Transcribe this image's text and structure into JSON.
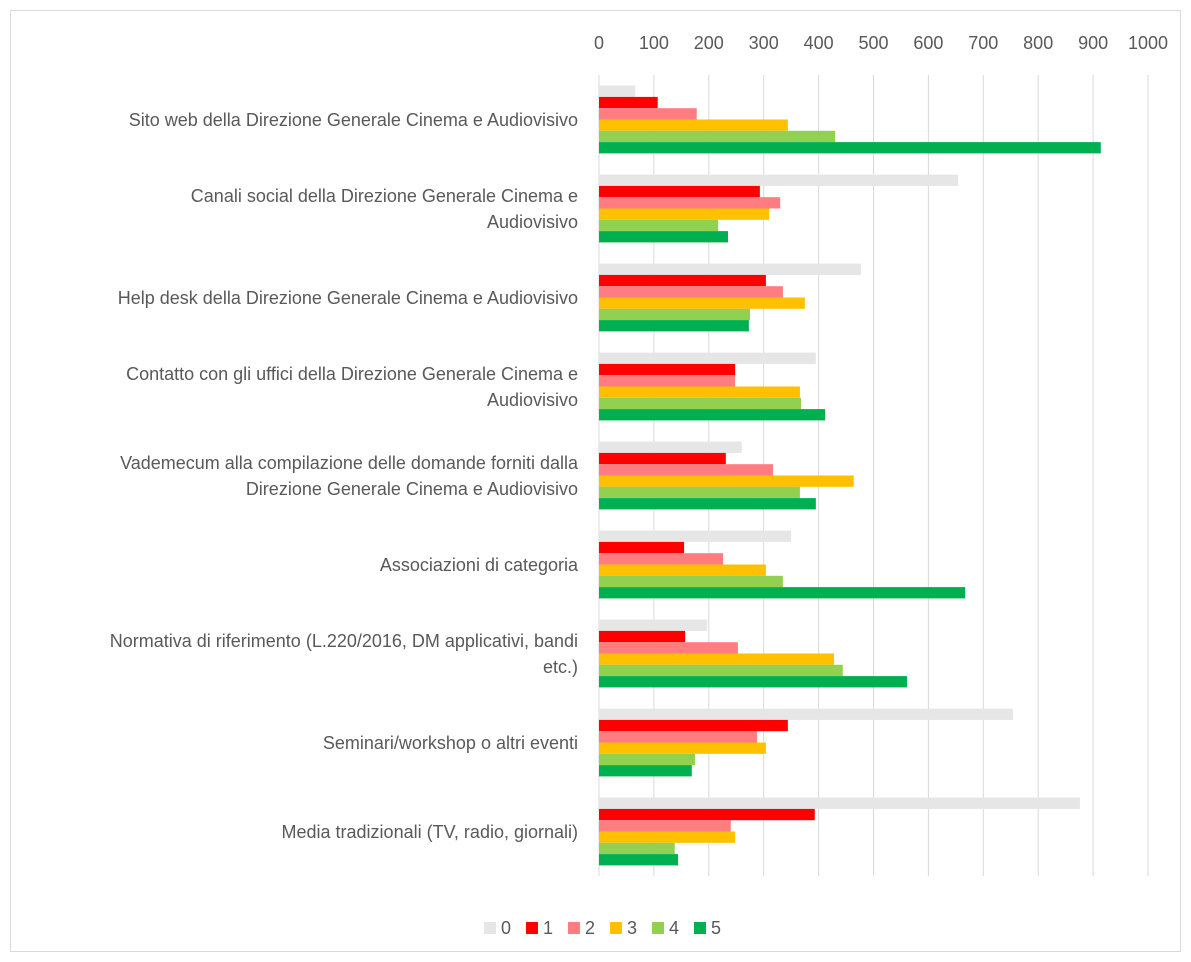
{
  "chart_data": {
    "type": "hbar",
    "categories": [
      "Sito web della Direzione Generale Cinema e Audiovisivo",
      "Canali social della Direzione Generale Cinema e Audiovisivo",
      "Help desk della Direzione Generale Cinema e Audiovisivo",
      "Contatto con gli uffici della Direzione Generale Cinema e Audiovisivo",
      "Vademecum alla compilazione delle domande forniti dalla Direzione Generale Cinema e Audiovisivo",
      "Associazioni di categoria",
      "Normativa di riferimento (L.220/2016, DM applicativi, bandi etc.)",
      "Seminari/workshop o altri eventi",
      "Media tradizionali (TV, radio, giornali)"
    ],
    "series": [
      {
        "name": "0",
        "color": "#e7e6e6",
        "values": [
          66,
          654,
          477,
          395,
          260,
          350,
          197,
          754,
          876
        ]
      },
      {
        "name": "1",
        "color": "#ff0000",
        "values": [
          107,
          293,
          304,
          248,
          231,
          155,
          157,
          344,
          393
        ]
      },
      {
        "name": "2",
        "color": "#ff7c80",
        "values": [
          178,
          330,
          335,
          248,
          317,
          226,
          253,
          288,
          240
        ]
      },
      {
        "name": "3",
        "color": "#ffc000",
        "values": [
          344,
          310,
          375,
          366,
          464,
          304,
          428,
          304,
          248
        ]
      },
      {
        "name": "4",
        "color": "#92d050",
        "values": [
          430,
          217,
          275,
          368,
          366,
          335,
          444,
          175,
          138
        ]
      },
      {
        "name": "5",
        "color": "#00b050",
        "values": [
          914,
          235,
          273,
          412,
          395,
          667,
          561,
          169,
          144
        ]
      }
    ],
    "xlim": [
      0,
      1000
    ],
    "xticks": [
      0,
      100,
      200,
      300,
      400,
      500,
      600,
      700,
      800,
      900,
      1000
    ],
    "grid": true,
    "legend": "bottom"
  }
}
